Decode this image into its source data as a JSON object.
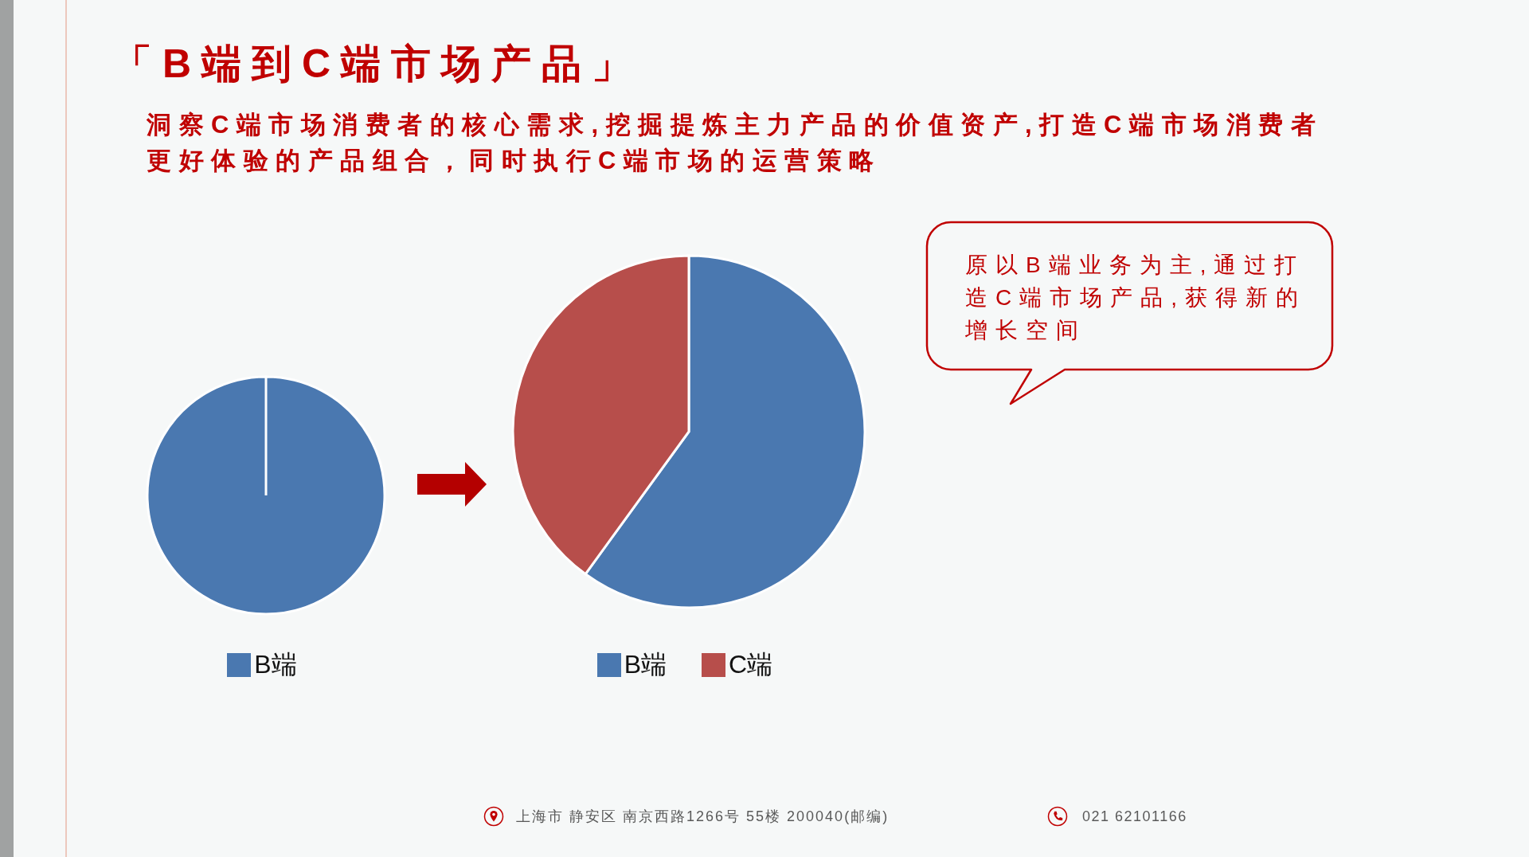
{
  "chart_data": [
    {
      "type": "pie",
      "title": "「B端到C端市场产品」",
      "subtitle": "洞察C端市场消费者的核心需求,挖掘提炼主力产品的价值资产,打造C端市场消费者更好体验的产品组合，同时执行C端市场的运营策略",
      "categories": [
        "B端"
      ],
      "values": [
        100
      ],
      "colors": [
        "#4a78b0"
      ],
      "legend": "bottom"
    },
    {
      "type": "pie",
      "categories": [
        "B端",
        "C端"
      ],
      "values": [
        60,
        40
      ],
      "colors": [
        "#4a78b0",
        "#b74e4b"
      ],
      "legend": "bottom",
      "annotations": [
        "原以B端业务为主,通过打造C端市场产品,获得新的增长空间",
        "上海市 静安区 南京西路1266号 55楼 200040(邮编)",
        "021 62101166"
      ]
    }
  ]
}
